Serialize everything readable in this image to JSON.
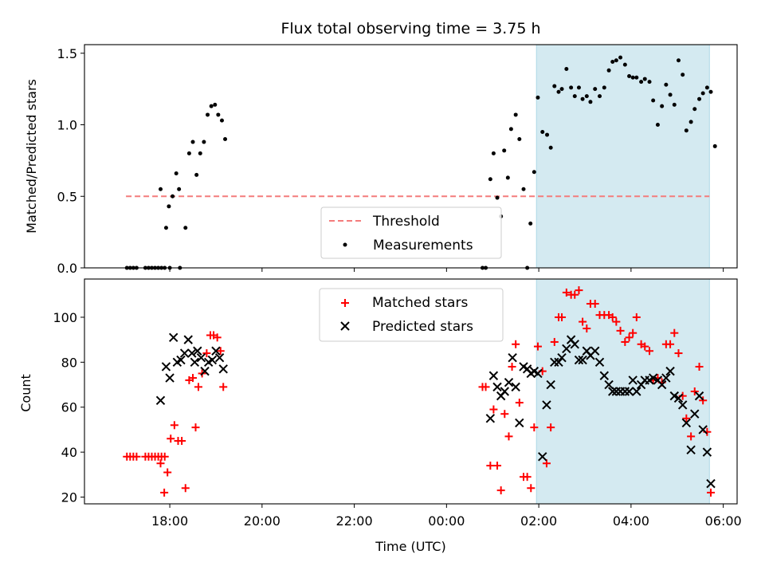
{
  "title": "Flux total observing time = 3.75 h",
  "xlabel": "Time (UTC)",
  "colors": {
    "threshold": "#f47c7c",
    "measurements": "#000000",
    "matched": "#ff0000",
    "predicted": "#000000",
    "window_fill": "#d4eaf1",
    "window_edge": "#add8e6"
  },
  "chart_data": [
    {
      "type": "scatter",
      "panel": "top",
      "ylabel": "Matched/Predicted stars",
      "ylim": [
        0,
        1.56
      ],
      "yticks": [
        0,
        0.5,
        1,
        1.5
      ],
      "ytick_labels": [
        "0.0",
        "0.5",
        "1.0",
        "1.5"
      ],
      "xlim": [
        -7.85,
        6.3
      ],
      "observing_window": [
        1.95,
        5.7
      ],
      "legend": {
        "placement": "lower-center",
        "entries": [
          "Threshold",
          "Measurements"
        ]
      },
      "threshold": {
        "name": "Threshold",
        "value": 0.5,
        "x": [
          -6.95,
          5.7
        ]
      },
      "measurements": {
        "name": "Measurements",
        "points": [
          [
            -6.93,
            0.0
          ],
          [
            -6.86,
            0.0
          ],
          [
            -6.79,
            0.0
          ],
          [
            -6.72,
            0.0
          ],
          [
            -6.53,
            0.0
          ],
          [
            -6.46,
            0.0
          ],
          [
            -6.39,
            0.0
          ],
          [
            -6.32,
            0.0
          ],
          [
            -6.25,
            0.0
          ],
          [
            -6.18,
            0.0
          ],
          [
            -6.11,
            0.0
          ],
          [
            -6.0,
            0.0
          ],
          [
            -5.78,
            0.0
          ],
          [
            -6.2,
            0.55
          ],
          [
            -6.08,
            0.28
          ],
          [
            -6.02,
            0.43
          ],
          [
            -5.94,
            0.5
          ],
          [
            -5.86,
            0.66
          ],
          [
            -5.8,
            0.55
          ],
          [
            -5.66,
            0.28
          ],
          [
            -5.58,
            0.8
          ],
          [
            -5.5,
            0.88
          ],
          [
            -5.42,
            0.65
          ],
          [
            -5.34,
            0.8
          ],
          [
            -5.26,
            0.88
          ],
          [
            -5.18,
            1.07
          ],
          [
            -5.1,
            1.13
          ],
          [
            -5.02,
            1.14
          ],
          [
            -4.95,
            1.07
          ],
          [
            -4.87,
            1.03
          ],
          [
            -4.8,
            0.9
          ],
          [
            0.78,
            0.0
          ],
          [
            0.85,
            0.0
          ],
          [
            0.95,
            0.62
          ],
          [
            1.02,
            0.8
          ],
          [
            1.1,
            0.49
          ],
          [
            1.18,
            0.36
          ],
          [
            1.25,
            0.82
          ],
          [
            1.33,
            0.63
          ],
          [
            1.4,
            0.97
          ],
          [
            1.5,
            1.07
          ],
          [
            1.58,
            0.9
          ],
          [
            1.67,
            0.55
          ],
          [
            1.75,
            0.0
          ],
          [
            1.82,
            0.31
          ],
          [
            1.9,
            0.67
          ],
          [
            1.98,
            1.19
          ],
          [
            2.08,
            0.95
          ],
          [
            2.18,
            0.93
          ],
          [
            2.26,
            0.84
          ],
          [
            2.34,
            1.27
          ],
          [
            2.43,
            1.23
          ],
          [
            2.5,
            1.25
          ],
          [
            2.6,
            1.39
          ],
          [
            2.7,
            1.26
          ],
          [
            2.78,
            1.2
          ],
          [
            2.87,
            1.26
          ],
          [
            2.95,
            1.18
          ],
          [
            3.04,
            1.2
          ],
          [
            3.12,
            1.16
          ],
          [
            3.22,
            1.25
          ],
          [
            3.32,
            1.2
          ],
          [
            3.42,
            1.26
          ],
          [
            3.52,
            1.38
          ],
          [
            3.6,
            1.44
          ],
          [
            3.68,
            1.45
          ],
          [
            3.77,
            1.47
          ],
          [
            3.87,
            1.42
          ],
          [
            3.96,
            1.34
          ],
          [
            4.04,
            1.33
          ],
          [
            4.12,
            1.33
          ],
          [
            4.22,
            1.3
          ],
          [
            4.3,
            1.32
          ],
          [
            4.4,
            1.3
          ],
          [
            4.48,
            1.17
          ],
          [
            4.58,
            1.0
          ],
          [
            4.67,
            1.13
          ],
          [
            4.76,
            1.28
          ],
          [
            4.85,
            1.21
          ],
          [
            4.94,
            1.14
          ],
          [
            5.03,
            1.45
          ],
          [
            5.12,
            1.35
          ],
          [
            5.2,
            0.96
          ],
          [
            5.3,
            1.02
          ],
          [
            5.38,
            1.11
          ],
          [
            5.48,
            1.18
          ],
          [
            5.56,
            1.22
          ],
          [
            5.65,
            1.26
          ],
          [
            5.73,
            1.23
          ],
          [
            5.82,
            0.85
          ]
        ]
      }
    },
    {
      "type": "scatter",
      "panel": "bottom",
      "ylabel": "Count",
      "ylim": [
        17,
        117
      ],
      "yticks": [
        20,
        40,
        60,
        80,
        100
      ],
      "xlim": [
        -7.85,
        6.3
      ],
      "xticks": [
        -6,
        -4,
        -2,
        0,
        2,
        4,
        6
      ],
      "xtick_labels": [
        "18:00",
        "20:00",
        "22:00",
        "00:00",
        "02:00",
        "04:00",
        "06:00"
      ],
      "observing_window": [
        1.95,
        5.7
      ],
      "legend": {
        "placement": "upper-center",
        "entries": [
          "Matched stars",
          "Predicted stars"
        ]
      },
      "series": [
        {
          "name": "Matched stars",
          "marker": "plus",
          "points": [
            [
              -6.93,
              38
            ],
            [
              -6.86,
              38
            ],
            [
              -6.79,
              38
            ],
            [
              -6.72,
              38
            ],
            [
              -6.53,
              38
            ],
            [
              -6.46,
              38
            ],
            [
              -6.39,
              38
            ],
            [
              -6.32,
              38
            ],
            [
              -6.25,
              38
            ],
            [
              -6.18,
              38
            ],
            [
              -6.11,
              38
            ],
            [
              -6.2,
              35
            ],
            [
              -6.12,
              22
            ],
            [
              -6.05,
              31
            ],
            [
              -5.98,
              46
            ],
            [
              -5.9,
              52
            ],
            [
              -5.82,
              45
            ],
            [
              -5.74,
              45
            ],
            [
              -5.66,
              24
            ],
            [
              -5.58,
              72
            ],
            [
              -5.5,
              73
            ],
            [
              -5.44,
              51
            ],
            [
              -5.38,
              69
            ],
            [
              -5.3,
              75
            ],
            [
              -5.2,
              84
            ],
            [
              -5.12,
              92
            ],
            [
              -5.05,
              92
            ],
            [
              -4.97,
              91
            ],
            [
              -4.9,
              85
            ],
            [
              -4.84,
              69
            ],
            [
              0.78,
              69
            ],
            [
              0.85,
              69
            ],
            [
              0.95,
              34
            ],
            [
              1.02,
              59
            ],
            [
              1.1,
              34
            ],
            [
              1.18,
              23
            ],
            [
              1.26,
              57
            ],
            [
              1.35,
              47
            ],
            [
              1.42,
              78
            ],
            [
              1.5,
              88
            ],
            [
              1.58,
              62
            ],
            [
              1.67,
              29
            ],
            [
              1.75,
              29
            ],
            [
              1.83,
              24
            ],
            [
              1.9,
              51
            ],
            [
              1.98,
              87
            ],
            [
              2.08,
              76
            ],
            [
              2.17,
              35
            ],
            [
              2.26,
              51
            ],
            [
              2.34,
              89
            ],
            [
              2.43,
              100
            ],
            [
              2.5,
              100
            ],
            [
              2.6,
              111
            ],
            [
              2.7,
              110
            ],
            [
              2.78,
              110
            ],
            [
              2.87,
              112
            ],
            [
              2.95,
              98
            ],
            [
              3.04,
              95
            ],
            [
              3.12,
              106
            ],
            [
              3.22,
              106
            ],
            [
              3.32,
              101
            ],
            [
              3.42,
              101
            ],
            [
              3.52,
              101
            ],
            [
              3.6,
              100
            ],
            [
              3.68,
              98
            ],
            [
              3.77,
              94
            ],
            [
              3.87,
              89
            ],
            [
              3.96,
              91
            ],
            [
              4.04,
              93
            ],
            [
              4.12,
              100
            ],
            [
              4.22,
              88
            ],
            [
              4.3,
              87
            ],
            [
              4.4,
              85
            ],
            [
              4.48,
              72
            ],
            [
              4.58,
              73
            ],
            [
              4.67,
              71
            ],
            [
              4.76,
              88
            ],
            [
              4.85,
              88
            ],
            [
              4.94,
              93
            ],
            [
              5.03,
              84
            ],
            [
              5.12,
              65
            ],
            [
              5.2,
              55
            ],
            [
              5.3,
              47
            ],
            [
              5.38,
              67
            ],
            [
              5.48,
              78
            ],
            [
              5.56,
              63
            ],
            [
              5.65,
              49
            ],
            [
              5.73,
              22
            ]
          ]
        },
        {
          "name": "Predicted stars",
          "marker": "x",
          "points": [
            [
              -6.2,
              63
            ],
            [
              -6.08,
              78
            ],
            [
              -6.0,
              73
            ],
            [
              -5.92,
              91
            ],
            [
              -5.84,
              80
            ],
            [
              -5.76,
              81
            ],
            [
              -5.68,
              84
            ],
            [
              -5.6,
              90
            ],
            [
              -5.52,
              84
            ],
            [
              -5.46,
              80
            ],
            [
              -5.4,
              85
            ],
            [
              -5.32,
              82
            ],
            [
              -5.24,
              76
            ],
            [
              -5.16,
              80
            ],
            [
              -5.08,
              81
            ],
            [
              -5.0,
              85
            ],
            [
              -4.92,
              82
            ],
            [
              -4.84,
              77
            ],
            [
              0.95,
              55
            ],
            [
              1.02,
              74
            ],
            [
              1.1,
              69
            ],
            [
              1.18,
              65
            ],
            [
              1.26,
              67
            ],
            [
              1.35,
              71
            ],
            [
              1.43,
              82
            ],
            [
              1.5,
              69
            ],
            [
              1.58,
              53
            ],
            [
              1.67,
              78
            ],
            [
              1.75,
              77
            ],
            [
              1.83,
              75
            ],
            [
              1.9,
              76
            ],
            [
              1.98,
              75
            ],
            [
              2.08,
              38
            ],
            [
              2.17,
              61
            ],
            [
              2.26,
              70
            ],
            [
              2.34,
              80
            ],
            [
              2.43,
              80
            ],
            [
              2.5,
              82
            ],
            [
              2.6,
              86
            ],
            [
              2.7,
              90
            ],
            [
              2.78,
              88
            ],
            [
              2.87,
              81
            ],
            [
              2.95,
              81
            ],
            [
              3.04,
              85
            ],
            [
              3.12,
              83
            ],
            [
              3.22,
              85
            ],
            [
              3.32,
              80
            ],
            [
              3.42,
              74
            ],
            [
              3.52,
              70
            ],
            [
              3.6,
              67
            ],
            [
              3.68,
              67
            ],
            [
              3.77,
              67
            ],
            [
              3.87,
              67
            ],
            [
              3.96,
              67
            ],
            [
              4.04,
              72
            ],
            [
              4.12,
              67
            ],
            [
              4.22,
              70
            ],
            [
              4.3,
              72
            ],
            [
              4.4,
              72
            ],
            [
              4.48,
              73
            ],
            [
              4.58,
              72
            ],
            [
              4.67,
              70
            ],
            [
              4.76,
              73
            ],
            [
              4.85,
              76
            ],
            [
              4.94,
              65
            ],
            [
              5.03,
              64
            ],
            [
              5.12,
              61
            ],
            [
              5.2,
              53
            ],
            [
              5.3,
              41
            ],
            [
              5.38,
              57
            ],
            [
              5.48,
              65
            ],
            [
              5.56,
              50
            ],
            [
              5.65,
              40
            ],
            [
              5.73,
              26
            ]
          ]
        }
      ]
    }
  ]
}
